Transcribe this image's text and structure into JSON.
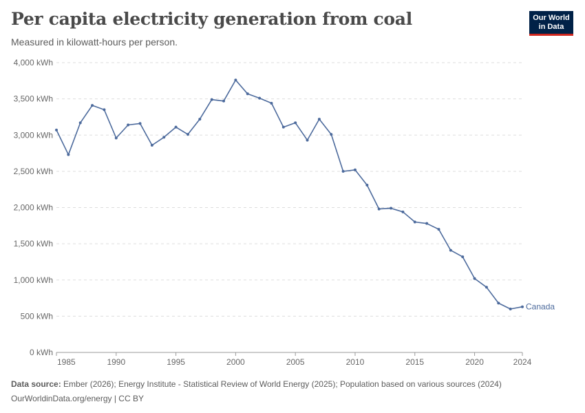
{
  "header": {
    "title": "Per capita electricity generation from coal",
    "subtitle": "Measured in kilowatt-hours per person.",
    "logo_line1": "Our World",
    "logo_line2": "in Data"
  },
  "footer": {
    "source_label": "Data source:",
    "source_text": "Ember (2026); Energy Institute - Statistical Review of World Energy (2025); Population based on various sources (2024)",
    "site_text": "OurWorldinData.org/energy | CC BY"
  },
  "colors": {
    "series": "#4c6a9c",
    "grid": "#dddddd",
    "logo_bg": "#002147",
    "logo_accent": "#ce261e"
  },
  "chart_data": {
    "type": "line",
    "title": "Per capita electricity generation from coal",
    "subtitle": "Measured in kilowatt-hours per person.",
    "xlabel": "",
    "ylabel": "",
    "xlim": [
      1985,
      2024
    ],
    "ylim": [
      0,
      4000
    ],
    "grid": true,
    "x_ticks": [
      {
        "value": 1985,
        "label": "1985"
      },
      {
        "value": 1990,
        "label": "1990"
      },
      {
        "value": 1995,
        "label": "1995"
      },
      {
        "value": 2000,
        "label": "2000"
      },
      {
        "value": 2005,
        "label": "2005"
      },
      {
        "value": 2010,
        "label": "2010"
      },
      {
        "value": 2015,
        "label": "2015"
      },
      {
        "value": 2020,
        "label": "2020"
      },
      {
        "value": 2024,
        "label": "2024"
      }
    ],
    "y_ticks": [
      {
        "value": 0,
        "label": "0 kWh"
      },
      {
        "value": 500,
        "label": "500 kWh"
      },
      {
        "value": 1000,
        "label": "1,000 kWh"
      },
      {
        "value": 1500,
        "label": "1,500 kWh"
      },
      {
        "value": 2000,
        "label": "2,000 kWh"
      },
      {
        "value": 2500,
        "label": "2,500 kWh"
      },
      {
        "value": 3000,
        "label": "3,000 kWh"
      },
      {
        "value": 3500,
        "label": "3,500 kWh"
      },
      {
        "value": 4000,
        "label": "4,000 kWh"
      }
    ],
    "series": [
      {
        "name": "Canada",
        "x": [
          1985,
          1986,
          1987,
          1988,
          1989,
          1990,
          1991,
          1992,
          1993,
          1994,
          1995,
          1996,
          1997,
          1998,
          1999,
          2000,
          2001,
          2002,
          2003,
          2004,
          2005,
          2006,
          2007,
          2008,
          2009,
          2010,
          2011,
          2012,
          2013,
          2014,
          2015,
          2016,
          2017,
          2018,
          2019,
          2020,
          2021,
          2022,
          2023,
          2024
        ],
        "values": [
          3070,
          2730,
          3170,
          3410,
          3350,
          2960,
          3140,
          3160,
          2860,
          2970,
          3110,
          3010,
          3220,
          3490,
          3470,
          3760,
          3570,
          3510,
          3440,
          3110,
          3170,
          2930,
          3220,
          3010,
          2500,
          2520,
          2310,
          1980,
          1990,
          1940,
          1800,
          1780,
          1700,
          1410,
          1320,
          1020,
          900,
          680,
          600,
          630
        ]
      }
    ]
  }
}
